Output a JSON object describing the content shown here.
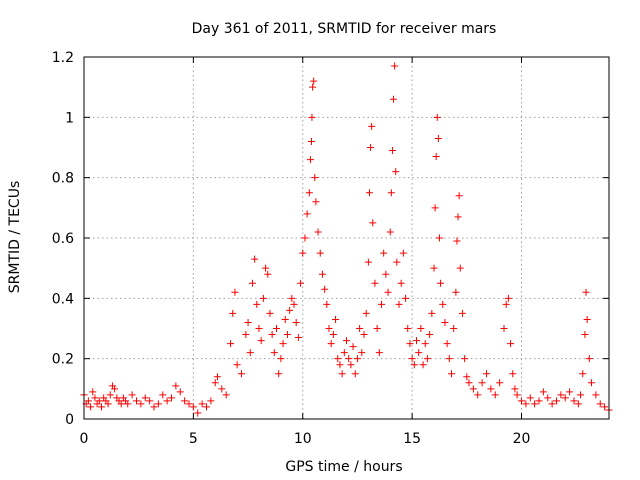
{
  "chart_data": {
    "type": "scatter",
    "title": "Day 361 of 2011, SRMTID for receiver mars",
    "xlabel": "GPS time / hours",
    "ylabel": "SRMTID / TECUs",
    "xlim": [
      0,
      24
    ],
    "ylim": [
      0,
      1.2
    ],
    "xticks": [
      0,
      5,
      10,
      15,
      20
    ],
    "xtick_labels": [
      "0",
      "5",
      "10",
      "15",
      "20"
    ],
    "yticks": [
      0,
      0.2,
      0.4,
      0.6,
      0.8,
      1.0,
      1.2
    ],
    "ytick_labels": [
      "0",
      "0.2",
      "0.4",
      "0.6",
      "0.8",
      "1",
      "1.2"
    ],
    "grid": true,
    "marker": "+",
    "color": "#ff0000",
    "series": [
      {
        "name": "SRMTID",
        "points": [
          [
            0.0,
            0.08
          ],
          [
            0.1,
            0.05
          ],
          [
            0.2,
            0.06
          ],
          [
            0.3,
            0.04
          ],
          [
            0.4,
            0.09
          ],
          [
            0.5,
            0.07
          ],
          [
            0.6,
            0.05
          ],
          [
            0.7,
            0.06
          ],
          [
            0.8,
            0.04
          ],
          [
            0.9,
            0.07
          ],
          [
            1.0,
            0.06
          ],
          [
            1.1,
            0.05
          ],
          [
            1.2,
            0.08
          ],
          [
            1.3,
            0.11
          ],
          [
            1.4,
            0.1
          ],
          [
            1.5,
            0.07
          ],
          [
            1.6,
            0.06
          ],
          [
            1.7,
            0.05
          ],
          [
            1.8,
            0.07
          ],
          [
            1.9,
            0.06
          ],
          [
            2.0,
            0.05
          ],
          [
            2.2,
            0.08
          ],
          [
            2.4,
            0.06
          ],
          [
            2.6,
            0.05
          ],
          [
            2.8,
            0.07
          ],
          [
            3.0,
            0.06
          ],
          [
            3.2,
            0.04
          ],
          [
            3.4,
            0.05
          ],
          [
            3.6,
            0.08
          ],
          [
            3.8,
            0.06
          ],
          [
            4.0,
            0.07
          ],
          [
            4.2,
            0.11
          ],
          [
            4.4,
            0.09
          ],
          [
            4.6,
            0.06
          ],
          [
            4.8,
            0.05
          ],
          [
            5.0,
            0.04
          ],
          [
            5.2,
            0.02
          ],
          [
            5.4,
            0.05
          ],
          [
            5.6,
            0.04
          ],
          [
            5.8,
            0.06
          ],
          [
            6.0,
            0.12
          ],
          [
            6.1,
            0.14
          ],
          [
            6.3,
            0.1
          ],
          [
            6.5,
            0.08
          ],
          [
            6.7,
            0.25
          ],
          [
            6.8,
            0.35
          ],
          [
            6.9,
            0.42
          ],
          [
            7.0,
            0.18
          ],
          [
            7.2,
            0.15
          ],
          [
            7.4,
            0.28
          ],
          [
            7.5,
            0.32
          ],
          [
            7.6,
            0.22
          ],
          [
            7.7,
            0.45
          ],
          [
            7.8,
            0.53
          ],
          [
            7.9,
            0.38
          ],
          [
            8.0,
            0.3
          ],
          [
            8.1,
            0.26
          ],
          [
            8.2,
            0.4
          ],
          [
            8.3,
            0.5
          ],
          [
            8.4,
            0.48
          ],
          [
            8.5,
            0.35
          ],
          [
            8.6,
            0.28
          ],
          [
            8.7,
            0.22
          ],
          [
            8.8,
            0.3
          ],
          [
            8.9,
            0.15
          ],
          [
            9.0,
            0.2
          ],
          [
            9.1,
            0.25
          ],
          [
            9.2,
            0.33
          ],
          [
            9.3,
            0.28
          ],
          [
            9.4,
            0.36
          ],
          [
            9.5,
            0.4
          ],
          [
            9.6,
            0.38
          ],
          [
            9.7,
            0.32
          ],
          [
            9.8,
            0.27
          ],
          [
            9.9,
            0.45
          ],
          [
            10.0,
            0.55
          ],
          [
            10.1,
            0.6
          ],
          [
            10.2,
            0.68
          ],
          [
            10.3,
            0.75
          ],
          [
            10.35,
            0.86
          ],
          [
            10.4,
            0.92
          ],
          [
            10.42,
            1.0
          ],
          [
            10.45,
            1.1
          ],
          [
            10.5,
            1.12
          ],
          [
            10.55,
            0.8
          ],
          [
            10.6,
            0.72
          ],
          [
            10.7,
            0.62
          ],
          [
            10.8,
            0.55
          ],
          [
            10.9,
            0.48
          ],
          [
            11.0,
            0.43
          ],
          [
            11.1,
            0.38
          ],
          [
            11.2,
            0.3
          ],
          [
            11.3,
            0.25
          ],
          [
            11.4,
            0.28
          ],
          [
            11.5,
            0.33
          ],
          [
            11.6,
            0.2
          ],
          [
            11.7,
            0.18
          ],
          [
            11.8,
            0.15
          ],
          [
            11.9,
            0.22
          ],
          [
            12.0,
            0.26
          ],
          [
            12.1,
            0.2
          ],
          [
            12.2,
            0.18
          ],
          [
            12.3,
            0.24
          ],
          [
            12.4,
            0.15
          ],
          [
            12.5,
            0.2
          ],
          [
            12.6,
            0.3
          ],
          [
            12.7,
            0.22
          ],
          [
            12.8,
            0.28
          ],
          [
            12.9,
            0.35
          ],
          [
            13.0,
            0.52
          ],
          [
            13.05,
            0.75
          ],
          [
            13.1,
            0.9
          ],
          [
            13.15,
            0.97
          ],
          [
            13.2,
            0.65
          ],
          [
            13.3,
            0.45
          ],
          [
            13.4,
            0.3
          ],
          [
            13.5,
            0.22
          ],
          [
            13.6,
            0.38
          ],
          [
            13.7,
            0.55
          ],
          [
            13.8,
            0.48
          ],
          [
            13.9,
            0.42
          ],
          [
            14.0,
            0.62
          ],
          [
            14.05,
            0.75
          ],
          [
            14.1,
            0.89
          ],
          [
            14.15,
            1.06
          ],
          [
            14.2,
            1.17
          ],
          [
            14.25,
            0.82
          ],
          [
            14.3,
            0.52
          ],
          [
            14.4,
            0.38
          ],
          [
            14.5,
            0.45
          ],
          [
            14.6,
            0.55
          ],
          [
            14.7,
            0.4
          ],
          [
            14.8,
            0.3
          ],
          [
            14.9,
            0.25
          ],
          [
            15.0,
            0.2
          ],
          [
            15.1,
            0.18
          ],
          [
            15.2,
            0.26
          ],
          [
            15.3,
            0.22
          ],
          [
            15.4,
            0.3
          ],
          [
            15.5,
            0.18
          ],
          [
            15.6,
            0.25
          ],
          [
            15.7,
            0.2
          ],
          [
            15.8,
            0.28
          ],
          [
            15.9,
            0.35
          ],
          [
            16.0,
            0.5
          ],
          [
            16.05,
            0.7
          ],
          [
            16.1,
            0.87
          ],
          [
            16.15,
            1.0
          ],
          [
            16.2,
            0.93
          ],
          [
            16.25,
            0.6
          ],
          [
            16.3,
            0.45
          ],
          [
            16.4,
            0.38
          ],
          [
            16.5,
            0.32
          ],
          [
            16.6,
            0.25
          ],
          [
            16.7,
            0.2
          ],
          [
            16.8,
            0.15
          ],
          [
            16.9,
            0.3
          ],
          [
            17.0,
            0.42
          ],
          [
            17.05,
            0.59
          ],
          [
            17.1,
            0.67
          ],
          [
            17.15,
            0.74
          ],
          [
            17.2,
            0.5
          ],
          [
            17.3,
            0.35
          ],
          [
            17.4,
            0.2
          ],
          [
            17.5,
            0.14
          ],
          [
            17.6,
            0.12
          ],
          [
            17.8,
            0.1
          ],
          [
            18.0,
            0.08
          ],
          [
            18.2,
            0.12
          ],
          [
            18.4,
            0.15
          ],
          [
            18.6,
            0.1
          ],
          [
            18.8,
            0.08
          ],
          [
            19.0,
            0.12
          ],
          [
            19.2,
            0.3
          ],
          [
            19.3,
            0.38
          ],
          [
            19.4,
            0.4
          ],
          [
            19.5,
            0.25
          ],
          [
            19.6,
            0.15
          ],
          [
            19.7,
            0.1
          ],
          [
            19.8,
            0.08
          ],
          [
            20.0,
            0.06
          ],
          [
            20.2,
            0.05
          ],
          [
            20.4,
            0.07
          ],
          [
            20.6,
            0.05
          ],
          [
            20.8,
            0.06
          ],
          [
            21.0,
            0.09
          ],
          [
            21.2,
            0.07
          ],
          [
            21.4,
            0.05
          ],
          [
            21.6,
            0.06
          ],
          [
            21.8,
            0.08
          ],
          [
            22.0,
            0.07
          ],
          [
            22.2,
            0.09
          ],
          [
            22.4,
            0.06
          ],
          [
            22.6,
            0.05
          ],
          [
            22.7,
            0.08
          ],
          [
            22.8,
            0.15
          ],
          [
            22.9,
            0.28
          ],
          [
            22.95,
            0.42
          ],
          [
            23.0,
            0.33
          ],
          [
            23.1,
            0.2
          ],
          [
            23.2,
            0.12
          ],
          [
            23.4,
            0.08
          ],
          [
            23.6,
            0.05
          ],
          [
            23.8,
            0.04
          ],
          [
            24.0,
            0.03
          ]
        ]
      }
    ]
  }
}
